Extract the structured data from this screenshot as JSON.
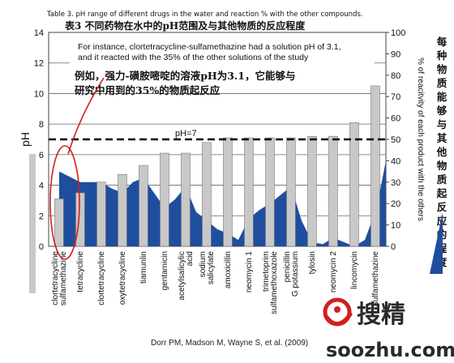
{
  "chart_data": {
    "type": "bar",
    "title": "Table 3. pH range of different drugs in the water and reaction % with the other compounds.",
    "title_cn": "表3 不同药物在水中的pH范围及与其他物质的反应程度",
    "categories": [
      "clortetracycline sulfamethazine",
      "tetracycline",
      "clortetracycline",
      "oxytetracycline",
      "tiamunlin",
      "gentamicin",
      "acetylsalicylic acid",
      "sodium salicylate",
      "amoxicillin",
      "neomycin 1",
      "trimetoprim sulfamethoxazole",
      "penicillin G potassium",
      "tylosin",
      "neomycin 2",
      "lincomycin",
      "sulfamethazine"
    ],
    "bar_values_ph": [
      3.1,
      3.5,
      4.2,
      4.7,
      5.3,
      6.1,
      6.1,
      6.8,
      7.1,
      7.1,
      7.1,
      7.1,
      7.2,
      7.2,
      8.1,
      10.5
    ],
    "area_reactivity_pct": [
      {
        "x": 0,
        "y": 35
      },
      {
        "x": 0.4,
        "y": 33
      },
      {
        "x": 1,
        "y": 30
      },
      {
        "x": 1.5,
        "y": 30
      },
      {
        "x": 2,
        "y": 30
      },
      {
        "x": 2.5,
        "y": 27
      },
      {
        "x": 3,
        "y": 25
      },
      {
        "x": 3.5,
        "y": 30
      },
      {
        "x": 4,
        "y": 32
      },
      {
        "x": 4.5,
        "y": 25
      },
      {
        "x": 5,
        "y": 18
      },
      {
        "x": 5.5,
        "y": 22
      },
      {
        "x": 6,
        "y": 28
      },
      {
        "x": 6.5,
        "y": 16
      },
      {
        "x": 7,
        "y": 12
      },
      {
        "x": 7.5,
        "y": 8
      },
      {
        "x": 8,
        "y": 6
      },
      {
        "x": 8.5,
        "y": 3
      },
      {
        "x": 9,
        "y": 13
      },
      {
        "x": 9.5,
        "y": 17
      },
      {
        "x": 10,
        "y": 20
      },
      {
        "x": 10.5,
        "y": 24
      },
      {
        "x": 11,
        "y": 28
      },
      {
        "x": 11.5,
        "y": 12
      },
      {
        "x": 12,
        "y": 2
      },
      {
        "x": 12.5,
        "y": 1
      },
      {
        "x": 13,
        "y": 4
      },
      {
        "x": 13.5,
        "y": 2
      },
      {
        "x": 14,
        "y": 0
      },
      {
        "x": 14.5,
        "y": 3
      },
      {
        "x": 15,
        "y": 16
      },
      {
        "x": 15.3,
        "y": 30
      },
      {
        "x": 15.5,
        "y": 40
      }
    ],
    "ylabel_left": "pH",
    "ylabel_right": "% of reacitvity of each product with the others",
    "ylim_left": [
      0,
      14
    ],
    "ylim_right": [
      0,
      100
    ],
    "yticks_left": [
      0,
      2,
      4,
      6,
      8,
      10,
      12,
      14
    ],
    "yticks_right": [
      0,
      10,
      20,
      30,
      40,
      50,
      60,
      70,
      80,
      90,
      100
    ],
    "reference_line": {
      "value": 7,
      "label": "pH=7"
    },
    "annotation_en": [
      "For instance, clortetracycline-sulfamethazine had a solution pH of 3.1,",
      "and it reacted with the 35% of the other solutions of the study"
    ],
    "annotation_cn": [
      "例如，强力-磺胺嘧啶的溶液pH为3.1，它能够与",
      "研究中用到的35%的物质起反应"
    ],
    "side_label_cn": "每种物质能够与其他物质起反应的程度",
    "source": "Dorr PM, Madson M, Wayne S, et al. (2009)",
    "colors": {
      "bar_fill": "#c8c8c8",
      "bar_stroke": "#777777",
      "area_fill": "#1f4e9e",
      "ellipse": "#d42020",
      "watermark_red": "#d41e1e"
    }
  },
  "watermark": {
    "cn": "搜精",
    "en": "soozhu.com"
  }
}
